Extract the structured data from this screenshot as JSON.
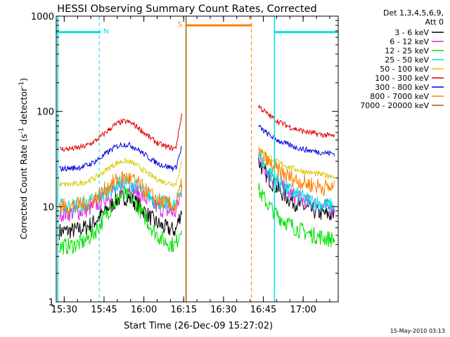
{
  "chart_data": {
    "type": "line",
    "title": "HESSI Observing Summary Count Rates, Corrected",
    "xlabel": "Start Time (26-Dec-09 15:27:02)",
    "ylabel_main": "Corrected Count Rate (s",
    "ylabel_sup1": "-1",
    "ylabel_mid": " detector",
    "ylabel_sup2": "-1",
    "ylabel_end": ")",
    "yscale": "log",
    "ylim": [
      1,
      1000
    ],
    "xlim_minutes": [
      15.45,
      17.22
    ],
    "x_ticks": [
      {
        "label": "15:30",
        "value": 15.5
      },
      {
        "label": "15:45",
        "value": 15.75
      },
      {
        "label": "16:00",
        "value": 16.0
      },
      {
        "label": "16:15",
        "value": 16.25
      },
      {
        "label": "16:30",
        "value": 16.5
      },
      {
        "label": "16:45",
        "value": 16.75
      },
      {
        "label": "17:00",
        "value": 17.0
      }
    ],
    "y_ticks": [
      {
        "label": "1",
        "value": 1
      },
      {
        "label": "10",
        "value": 10
      },
      {
        "label": "100",
        "value": 100
      },
      {
        "label": "1000",
        "value": 1000
      }
    ],
    "legend_header": [
      "Det 1,3,4,5,6,9,",
      "Att 0"
    ],
    "legend_position": "right",
    "series": [
      {
        "name": "3 - 6 keV",
        "color": "#000000",
        "pre_edge": 5.5,
        "pre_peak": 12.5,
        "post_start": 30,
        "post_end": 8
      },
      {
        "name": "6 - 12 keV",
        "color": "#e020e0",
        "pre_edge": 8.5,
        "pre_peak": 16,
        "post_start": 33,
        "post_end": 9.5
      },
      {
        "name": "12 - 25 keV",
        "color": "#00e000",
        "pre_edge": 3.8,
        "pre_peak": 13,
        "post_start": 15,
        "post_end": 4.5
      },
      {
        "name": "25 - 50 keV",
        "color": "#00e0e0",
        "pre_edge": 10,
        "pre_peak": 18,
        "post_start": 35,
        "post_end": 10
      },
      {
        "name": "50 - 100 keV",
        "color": "#d8c800",
        "pre_edge": 17,
        "pre_peak": 30,
        "post_start": 42,
        "post_end": 21
      },
      {
        "name": "100 - 300 keV",
        "color": "#e00000",
        "pre_edge": 40,
        "pre_peak": 78,
        "post_start": 115,
        "post_end": 55
      },
      {
        "name": "300 - 800 keV",
        "color": "#0000e0",
        "pre_edge": 25,
        "pre_peak": 45,
        "post_start": 70,
        "post_end": 36
      },
      {
        "name": "800 - 7000 keV",
        "color": "#ff8000",
        "pre_edge": 10,
        "pre_peak": 20,
        "post_start": 38,
        "post_end": 15.5
      },
      {
        "name": "7000 - 20000 keV",
        "color": "#a06000",
        "pre_edge": 0,
        "pre_peak": 0,
        "post_start": 0,
        "post_end": 0
      }
    ],
    "flag_bars": [
      {
        "label": "N",
        "color": "#00e0e0",
        "value": 680,
        "segments": [
          [
            15.45,
            15.73
          ],
          [
            16.82,
            17.22
          ]
        ]
      },
      {
        "label": "S",
        "color": "#ff8000",
        "value": 800,
        "segments": [
          [
            16.26,
            16.68
          ]
        ]
      }
    ],
    "markers": {
      "n_lines": [
        15.72,
        16.83,
        17.22
      ],
      "s_solid": 16.265,
      "s_dashed": 16.675,
      "cyan_solid_left": 15.46,
      "cyan_solid_right": 16.82
    },
    "timestamp": "15-May-2010 03:13"
  }
}
